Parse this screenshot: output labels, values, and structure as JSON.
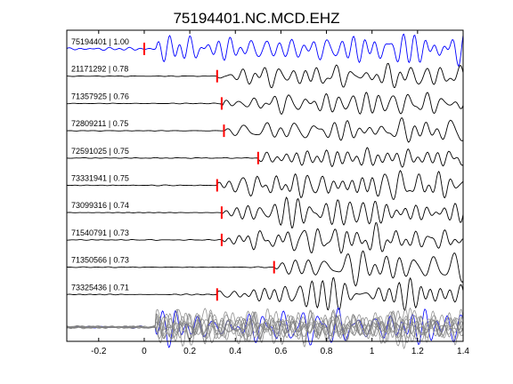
{
  "chart_data": {
    "type": "line",
    "title": "75194401.NC.MCD.EHZ",
    "xlim": [
      -0.34,
      1.4
    ],
    "xticks": [
      "-0.2",
      "0",
      "0.2",
      "0.4",
      "0.6",
      "0.8",
      "1",
      "1.2",
      "1.4"
    ],
    "xtick_values": [
      -0.2,
      0,
      0.2,
      0.4,
      0.6,
      0.8,
      1.0,
      1.2,
      1.4
    ],
    "grid": false,
    "colors": {
      "reference": "#0000ff",
      "trace": "#000000",
      "pick": "#ff0000",
      "stack": "#808080"
    },
    "series": [
      {
        "label": "75194401 | 1.00",
        "pick": 0.0,
        "color": "#0000ff",
        "seed": 3
      },
      {
        "label": "21171292 | 0.78",
        "pick": 0.32,
        "color": "#000000",
        "seed": 7
      },
      {
        "label": "71357925 | 0.76",
        "pick": 0.34,
        "color": "#000000",
        "seed": 11
      },
      {
        "label": "72809211 | 0.75",
        "pick": 0.35,
        "color": "#000000",
        "seed": 13
      },
      {
        "label": "72591025 | 0.75",
        "pick": 0.5,
        "color": "#000000",
        "seed": 17
      },
      {
        "label": "73331941 | 0.75",
        "pick": 0.32,
        "color": "#000000",
        "seed": 19
      },
      {
        "label": "73099316 | 0.74",
        "pick": 0.34,
        "color": "#000000",
        "seed": 23
      },
      {
        "label": "71540791 | 0.73",
        "pick": 0.34,
        "color": "#000000",
        "seed": 29
      },
      {
        "label": "71350566 | 0.73",
        "pick": 0.57,
        "color": "#000000",
        "seed": 31
      },
      {
        "label": "73325436 | 0.71",
        "pick": 0.32,
        "color": "#000000",
        "seed": 37
      }
    ]
  }
}
